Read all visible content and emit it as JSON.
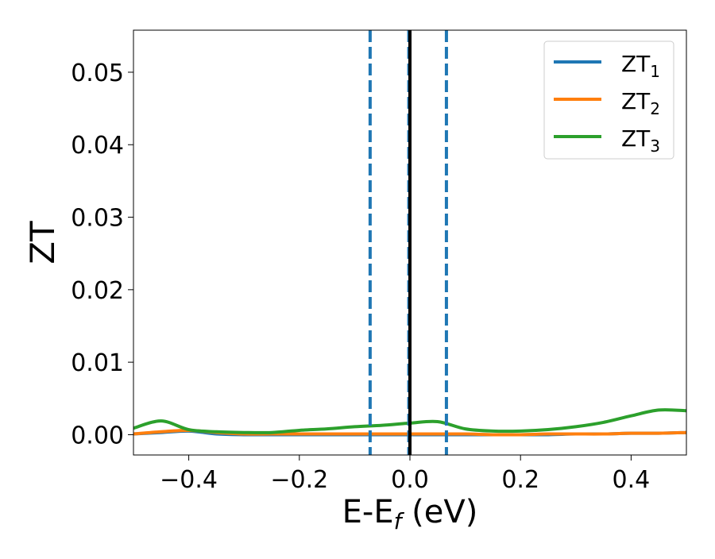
{
  "chart_data": {
    "type": "line",
    "title": "",
    "xlabel": "E-E",
    "xlabel_sub": "f",
    "xlabel_unit": " (eV)",
    "ylabel": "ZT",
    "xlim": [
      -0.5,
      0.5
    ],
    "ylim": [
      -0.0028,
      0.0558
    ],
    "xticks": [
      -0.4,
      -0.2,
      0.0,
      0.2,
      0.4
    ],
    "xtick_labels": [
      "−0.4",
      "−0.2",
      "0.0",
      "0.2",
      "0.4"
    ],
    "yticks": [
      0.0,
      0.01,
      0.02,
      0.03,
      0.04,
      0.05
    ],
    "ytick_labels": [
      "0.00",
      "0.01",
      "0.02",
      "0.03",
      "0.04",
      "0.05"
    ],
    "grid": false,
    "legend_position": "top-right",
    "vlines": [
      {
        "x": -0.072,
        "style": "dashed",
        "color": "#1f77b4"
      },
      {
        "x": -0.002,
        "style": "dashed",
        "color": "#1f77b4"
      },
      {
        "x": 0.066,
        "style": "dashed",
        "color": "#1f77b4"
      },
      {
        "x": 0.0,
        "style": "solid",
        "color": "#000000"
      }
    ],
    "x": [
      -0.5,
      -0.45,
      -0.4,
      -0.35,
      -0.3,
      -0.25,
      -0.2,
      -0.15,
      -0.1,
      -0.05,
      0.0,
      0.05,
      0.1,
      0.15,
      0.2,
      0.25,
      0.3,
      0.35,
      0.4,
      0.45,
      0.5
    ],
    "series": [
      {
        "name": "ZT",
        "sub": "1",
        "color": "#1f77b4",
        "values": [
          0.0001,
          0.0003,
          0.0005,
          0.0001,
          0.0,
          0.0,
          0.0,
          0.0,
          0.0,
          0.0,
          0.0,
          0.0,
          0.0,
          0.0,
          0.0,
          0.0,
          0.0001,
          0.0001,
          0.0002,
          0.0002,
          0.0003
        ]
      },
      {
        "name": "ZT",
        "sub": "2",
        "color": "#ff7f0e",
        "values": [
          0.0001,
          0.0004,
          0.0006,
          0.0003,
          0.0001,
          0.0001,
          0.0001,
          0.0001,
          0.0001,
          0.0001,
          0.0001,
          0.0001,
          0.0001,
          0.0,
          0.0,
          0.0001,
          0.0001,
          0.0001,
          0.0002,
          0.0002,
          0.0003
        ]
      },
      {
        "name": "ZT",
        "sub": "3",
        "color": "#2ca02c",
        "values": [
          0.0009,
          0.0019,
          0.0007,
          0.0004,
          0.0003,
          0.0003,
          0.0006,
          0.0008,
          0.0011,
          0.0013,
          0.0016,
          0.0018,
          0.0008,
          0.0005,
          0.0005,
          0.0007,
          0.0011,
          0.0017,
          0.0026,
          0.0034,
          0.0033
        ]
      }
    ]
  }
}
